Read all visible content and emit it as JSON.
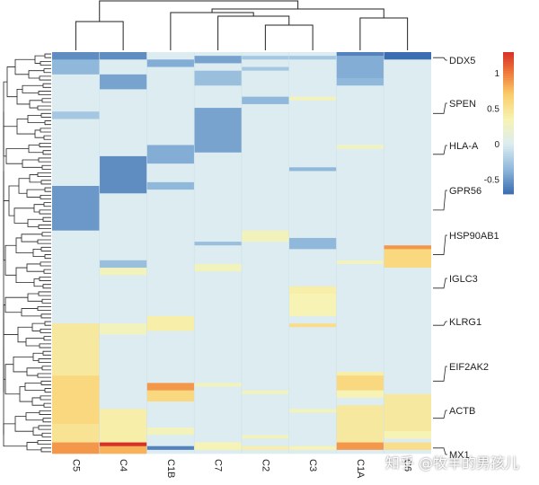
{
  "chart_data": {
    "type": "heatmap",
    "title": "",
    "columns": [
      "C5",
      "C4",
      "C1B",
      "C7",
      "C2",
      "C3",
      "C1A",
      "C6"
    ],
    "labeled_genes": [
      "DDX5",
      "SPEN",
      "HLA-A",
      "GPR56",
      "HSP90AB1",
      "IGLC3",
      "KLRG1",
      "EIF2AK2",
      "ACTB",
      "MX1"
    ],
    "n_rows": 108,
    "color_scale": {
      "breaks": [
        -0.7,
        -0.35,
        0,
        0.35,
        0.7,
        1.0,
        1.3
      ],
      "colors": [
        "#3b6db0",
        "#8fb8da",
        "#dcecf1",
        "#f6f3b4",
        "#fbcd6a",
        "#ef7c3b",
        "#d73027"
      ],
      "ticks": [
        1,
        0.5,
        0,
        -0.5
      ],
      "range": [
        -0.7,
        1.3
      ]
    },
    "default_value": 0,
    "blocks": [
      {
        "col": "C5",
        "rows": [
          0,
          1
        ],
        "value": -0.55
      },
      {
        "col": "C5",
        "rows": [
          2,
          5
        ],
        "value": -0.35
      },
      {
        "col": "C5",
        "rows": [
          16,
          17
        ],
        "value": -0.25
      },
      {
        "col": "C5",
        "rows": [
          36,
          47
        ],
        "value": -0.5
      },
      {
        "col": "C5",
        "rows": [
          73,
          86
        ],
        "value": 0.45
      },
      {
        "col": "C5",
        "rows": [
          87,
          99
        ],
        "value": 0.6
      },
      {
        "col": "C5",
        "rows": [
          100,
          104
        ],
        "value": 0.5
      },
      {
        "col": "C5",
        "rows": [
          105,
          107
        ],
        "value": 0.9
      },
      {
        "col": "C4",
        "rows": [
          0,
          1
        ],
        "value": -0.55
      },
      {
        "col": "C4",
        "rows": [
          6,
          9
        ],
        "value": -0.45
      },
      {
        "col": "C4",
        "rows": [
          28,
          37
        ],
        "value": -0.55
      },
      {
        "col": "C4",
        "rows": [
          56,
          57
        ],
        "value": -0.3
      },
      {
        "col": "C4",
        "rows": [
          58,
          59
        ],
        "value": 0.3
      },
      {
        "col": "C4",
        "rows": [
          73,
          75
        ],
        "value": 0.3
      },
      {
        "col": "C4",
        "rows": [
          96,
          104
        ],
        "value": 0.4
      },
      {
        "col": "C4",
        "rows": [
          105,
          105
        ],
        "value": 1.3
      },
      {
        "col": "C4",
        "rows": [
          106,
          107
        ],
        "value": 0.8
      },
      {
        "col": "C1B",
        "rows": [
          2,
          3
        ],
        "value": -0.4
      },
      {
        "col": "C1B",
        "rows": [
          25,
          29
        ],
        "value": -0.4
      },
      {
        "col": "C1B",
        "rows": [
          35,
          36
        ],
        "value": -0.35
      },
      {
        "col": "C1B",
        "rows": [
          71,
          74
        ],
        "value": 0.4
      },
      {
        "col": "C1B",
        "rows": [
          89,
          90
        ],
        "value": 0.9
      },
      {
        "col": "C1B",
        "rows": [
          91,
          93
        ],
        "value": 0.6
      },
      {
        "col": "C1B",
        "rows": [
          101,
          102
        ],
        "value": 0.3
      },
      {
        "col": "C1B",
        "rows": [
          106,
          106
        ],
        "value": -0.6
      },
      {
        "col": "C7",
        "rows": [
          1,
          2
        ],
        "value": -0.45
      },
      {
        "col": "C7",
        "rows": [
          5,
          8
        ],
        "value": -0.3
      },
      {
        "col": "C7",
        "rows": [
          15,
          26
        ],
        "value": -0.45
      },
      {
        "col": "C7",
        "rows": [
          51,
          51
        ],
        "value": -0.3
      },
      {
        "col": "C7",
        "rows": [
          57,
          58
        ],
        "value": 0.3
      },
      {
        "col": "C7",
        "rows": [
          89,
          89
        ],
        "value": 0.3
      },
      {
        "col": "C7",
        "rows": [
          105,
          106
        ],
        "value": 0.35
      },
      {
        "col": "C2",
        "rows": [
          1,
          1
        ],
        "value": -0.25
      },
      {
        "col": "C2",
        "rows": [
          4,
          4
        ],
        "value": -0.25
      },
      {
        "col": "C2",
        "rows": [
          12,
          13
        ],
        "value": -0.35
      },
      {
        "col": "C2",
        "rows": [
          48,
          50
        ],
        "value": 0.3
      },
      {
        "col": "C2",
        "rows": [
          91,
          91
        ],
        "value": 0.3
      },
      {
        "col": "C2",
        "rows": [
          103,
          103
        ],
        "value": 0.3
      },
      {
        "col": "C2",
        "rows": [
          106,
          106
        ],
        "value": 0.4
      },
      {
        "col": "C3",
        "rows": [
          1,
          1
        ],
        "value": -0.25
      },
      {
        "col": "C3",
        "rows": [
          12,
          12
        ],
        "value": 0.3
      },
      {
        "col": "C3",
        "rows": [
          31,
          31
        ],
        "value": -0.35
      },
      {
        "col": "C3",
        "rows": [
          50,
          52
        ],
        "value": -0.35
      },
      {
        "col": "C3",
        "rows": [
          63,
          64
        ],
        "value": 0.4
      },
      {
        "col": "C3",
        "rows": [
          65,
          70
        ],
        "value": 0.35
      },
      {
        "col": "C3",
        "rows": [
          73,
          73
        ],
        "value": 0.55
      },
      {
        "col": "C3",
        "rows": [
          96,
          96
        ],
        "value": 0.3
      },
      {
        "col": "C3",
        "rows": [
          106,
          106
        ],
        "value": 0.35
      },
      {
        "col": "C1A",
        "rows": [
          0,
          0
        ],
        "value": -0.6
      },
      {
        "col": "C1A",
        "rows": [
          1,
          6
        ],
        "value": -0.4
      },
      {
        "col": "C1A",
        "rows": [
          7,
          8
        ],
        "value": -0.35
      },
      {
        "col": "C1A",
        "rows": [
          25,
          25
        ],
        "value": 0.3
      },
      {
        "col": "C1A",
        "rows": [
          56,
          56
        ],
        "value": 0.3
      },
      {
        "col": "C1A",
        "rows": [
          86,
          86
        ],
        "value": 0.4
      },
      {
        "col": "C1A",
        "rows": [
          87,
          90
        ],
        "value": 0.6
      },
      {
        "col": "C1A",
        "rows": [
          91,
          92
        ],
        "value": 0.35
      },
      {
        "col": "C1A",
        "rows": [
          95,
          104
        ],
        "value": 0.45
      },
      {
        "col": "C1A",
        "rows": [
          105,
          106
        ],
        "value": 0.9
      },
      {
        "col": "C6",
        "rows": [
          0,
          1
        ],
        "value": -0.7
      },
      {
        "col": "C6",
        "rows": [
          52,
          52
        ],
        "value": 0.9
      },
      {
        "col": "C6",
        "rows": [
          53,
          57
        ],
        "value": 0.6
      },
      {
        "col": "C6",
        "rows": [
          92,
          101
        ],
        "value": 0.45
      },
      {
        "col": "C6",
        "rows": [
          102,
          103
        ],
        "value": 0.35
      },
      {
        "col": "C6",
        "rows": [
          105,
          106
        ],
        "value": 0.55
      }
    ]
  },
  "watermark": "知乎 @牧羊的男孩儿"
}
